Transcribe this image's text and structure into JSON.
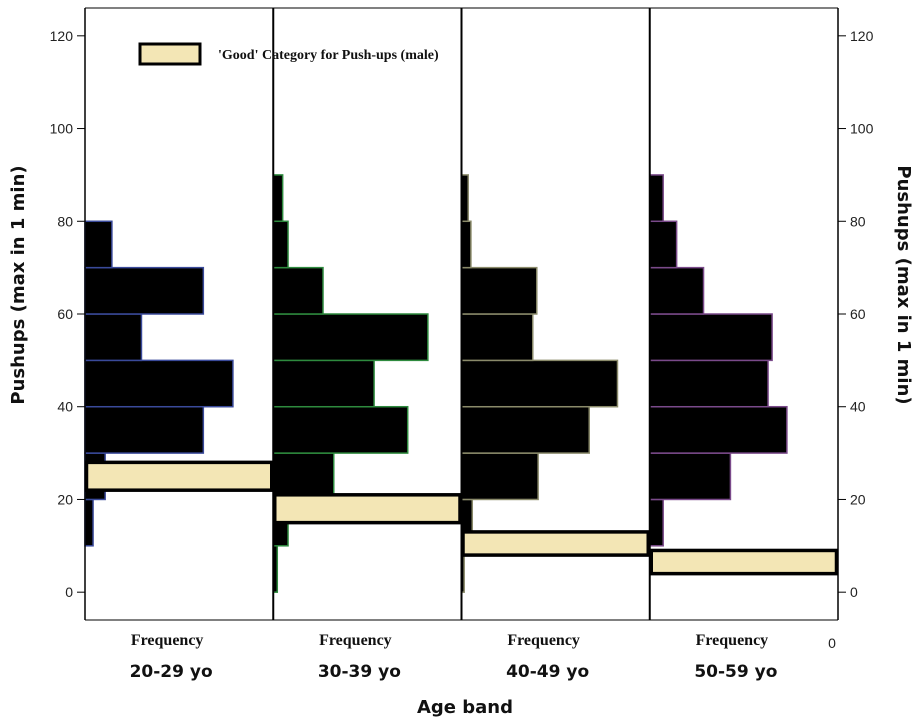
{
  "chart_data": {
    "type": "bar",
    "orientation": "horizontal-histogram-panels",
    "y_axis_label": "Pushups (max in 1 min)",
    "y_axis_label_right": "Pushups (max in 1 min)",
    "x_axis_label": "Age band",
    "frequency_label": "Frequency",
    "zero_label": "0",
    "ylim": [
      -6,
      126
    ],
    "yticks": [
      0,
      20,
      40,
      60,
      80,
      100,
      120
    ],
    "bin_width": 10,
    "legend": {
      "label": "'Good' Category for Push-ups (male)",
      "placement": "top-left",
      "fill": "#f3e6b5"
    },
    "colors": {
      "bar_fill": "#000000",
      "good_fill": "#f3e6b5"
    },
    "panels": [
      {
        "name": "20-29 yo",
        "outline_color": "#3a4a9a",
        "bins": [
          {
            "start": 10,
            "freq": 0.6
          },
          {
            "start": 20,
            "freq": 1.5
          },
          {
            "start": 30,
            "freq": 8.8
          },
          {
            "start": 40,
            "freq": 11.0
          },
          {
            "start": 50,
            "freq": 4.2
          },
          {
            "start": 60,
            "freq": 8.8
          },
          {
            "start": 70,
            "freq": 2.0
          }
        ],
        "good_range": [
          22,
          28
        ]
      },
      {
        "name": "30-39 yo",
        "outline_color": "#2e8a3e",
        "bins": [
          {
            "start": 0,
            "freq": 0.3
          },
          {
            "start": 10,
            "freq": 1.1
          },
          {
            "start": 20,
            "freq": 4.5
          },
          {
            "start": 30,
            "freq": 10.0
          },
          {
            "start": 40,
            "freq": 7.5
          },
          {
            "start": 50,
            "freq": 11.5
          },
          {
            "start": 60,
            "freq": 3.7
          },
          {
            "start": 70,
            "freq": 1.1
          },
          {
            "start": 80,
            "freq": 0.7
          }
        ],
        "good_range": [
          15,
          21
        ]
      },
      {
        "name": "40-49 yo",
        "outline_color": "#8a8a6a",
        "bins": [
          {
            "start": 0,
            "freq": 0.2
          },
          {
            "start": 10,
            "freq": 0.8
          },
          {
            "start": 20,
            "freq": 5.7
          },
          {
            "start": 30,
            "freq": 9.5
          },
          {
            "start": 40,
            "freq": 11.6
          },
          {
            "start": 50,
            "freq": 5.3
          },
          {
            "start": 60,
            "freq": 5.6
          },
          {
            "start": 70,
            "freq": 0.7
          },
          {
            "start": 80,
            "freq": 0.5
          }
        ],
        "good_range": [
          8,
          13
        ]
      },
      {
        "name": "50-59 yo",
        "outline_color": "#7a4a8a",
        "bins": [
          {
            "start": 10,
            "freq": 1.0
          },
          {
            "start": 20,
            "freq": 6.0
          },
          {
            "start": 30,
            "freq": 10.2
          },
          {
            "start": 40,
            "freq": 8.8
          },
          {
            "start": 50,
            "freq": 9.1
          },
          {
            "start": 60,
            "freq": 4.0
          },
          {
            "start": 70,
            "freq": 2.0
          },
          {
            "start": 80,
            "freq": 1.0
          }
        ],
        "good_range": [
          4,
          9
        ]
      }
    ]
  }
}
